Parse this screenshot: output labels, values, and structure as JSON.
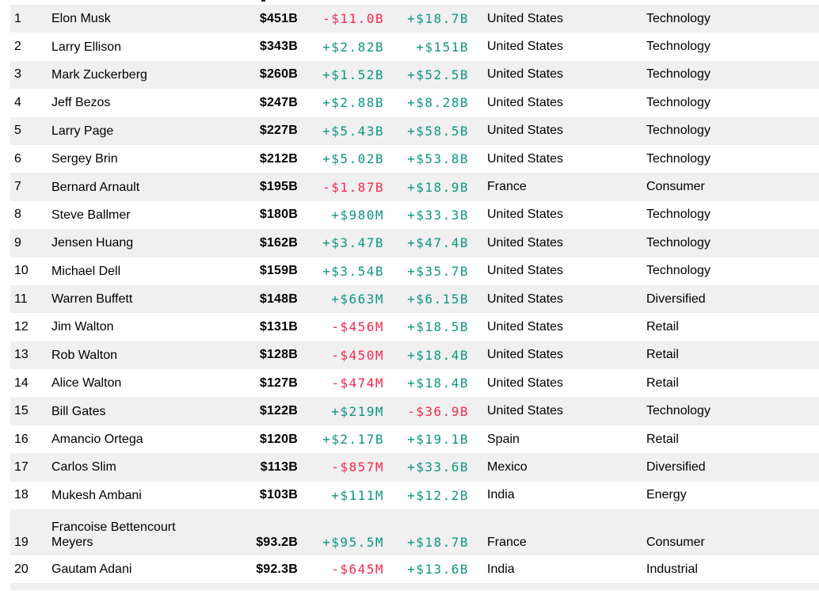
{
  "colors": {
    "positive": "#0e9682",
    "negative": "#f5294e",
    "stripe_bg": "#f0f0f0",
    "text": "#000000"
  },
  "table": {
    "rows": [
      {
        "rank": "1",
        "name": "Elon Musk",
        "net_worth": "$451B",
        "daily_change": "-$11.0B",
        "ytd_change": "+$18.7B",
        "country": "United States",
        "industry": "Technology"
      },
      {
        "rank": "2",
        "name": "Larry Ellison",
        "net_worth": "$343B",
        "daily_change": "+$2.82B",
        "ytd_change": "+$151B",
        "country": "United States",
        "industry": "Technology"
      },
      {
        "rank": "3",
        "name": "Mark Zuckerberg",
        "net_worth": "$260B",
        "daily_change": "+$1.52B",
        "ytd_change": "+$52.5B",
        "country": "United States",
        "industry": "Technology"
      },
      {
        "rank": "4",
        "name": "Jeff Bezos",
        "net_worth": "$247B",
        "daily_change": "+$2.88B",
        "ytd_change": "+$8.28B",
        "country": "United States",
        "industry": "Technology"
      },
      {
        "rank": "5",
        "name": "Larry Page",
        "net_worth": "$227B",
        "daily_change": "+$5.43B",
        "ytd_change": "+$58.5B",
        "country": "United States",
        "industry": "Technology"
      },
      {
        "rank": "6",
        "name": "Sergey Brin",
        "net_worth": "$212B",
        "daily_change": "+$5.02B",
        "ytd_change": "+$53.8B",
        "country": "United States",
        "industry": "Technology"
      },
      {
        "rank": "7",
        "name": "Bernard Arnault",
        "net_worth": "$195B",
        "daily_change": "-$1.87B",
        "ytd_change": "+$18.9B",
        "country": "France",
        "industry": "Consumer"
      },
      {
        "rank": "8",
        "name": "Steve Ballmer",
        "net_worth": "$180B",
        "daily_change": "+$980M",
        "ytd_change": "+$33.3B",
        "country": "United States",
        "industry": "Technology"
      },
      {
        "rank": "9",
        "name": "Jensen Huang",
        "net_worth": "$162B",
        "daily_change": "+$3.47B",
        "ytd_change": "+$47.4B",
        "country": "United States",
        "industry": "Technology"
      },
      {
        "rank": "10",
        "name": "Michael Dell",
        "net_worth": "$159B",
        "daily_change": "+$3.54B",
        "ytd_change": "+$35.7B",
        "country": "United States",
        "industry": "Technology"
      },
      {
        "rank": "11",
        "name": "Warren Buffett",
        "net_worth": "$148B",
        "daily_change": "+$663M",
        "ytd_change": "+$6.15B",
        "country": "United States",
        "industry": "Diversified"
      },
      {
        "rank": "12",
        "name": "Jim Walton",
        "net_worth": "$131B",
        "daily_change": "-$456M",
        "ytd_change": "+$18.5B",
        "country": "United States",
        "industry": "Retail"
      },
      {
        "rank": "13",
        "name": "Rob Walton",
        "net_worth": "$128B",
        "daily_change": "-$450M",
        "ytd_change": "+$18.4B",
        "country": "United States",
        "industry": "Retail"
      },
      {
        "rank": "14",
        "name": "Alice Walton",
        "net_worth": "$127B",
        "daily_change": "-$474M",
        "ytd_change": "+$18.4B",
        "country": "United States",
        "industry": "Retail"
      },
      {
        "rank": "15",
        "name": "Bill Gates",
        "net_worth": "$122B",
        "daily_change": "+$219M",
        "ytd_change": "-$36.9B",
        "country": "United States",
        "industry": "Technology"
      },
      {
        "rank": "16",
        "name": "Amancio Ortega",
        "net_worth": "$120B",
        "daily_change": "+$2.17B",
        "ytd_change": "+$19.1B",
        "country": "Spain",
        "industry": "Retail"
      },
      {
        "rank": "17",
        "name": "Carlos Slim",
        "net_worth": "$113B",
        "daily_change": "-$857M",
        "ytd_change": "+$33.6B",
        "country": "Mexico",
        "industry": "Diversified"
      },
      {
        "rank": "18",
        "name": "Mukesh Ambani",
        "net_worth": "$103B",
        "daily_change": "+$111M",
        "ytd_change": "+$12.2B",
        "country": "India",
        "industry": "Energy"
      },
      {
        "rank": "19",
        "name": "Francoise Bettencourt\nMeyers",
        "net_worth": "$93.2B",
        "daily_change": "+$95.5M",
        "ytd_change": "+$18.7B",
        "country": "France",
        "industry": "Consumer"
      },
      {
        "rank": "20",
        "name": "Gautam Adani",
        "net_worth": "$92.3B",
        "daily_change": "-$645M",
        "ytd_change": "+$13.6B",
        "country": "India",
        "industry": "Industrial"
      }
    ]
  }
}
